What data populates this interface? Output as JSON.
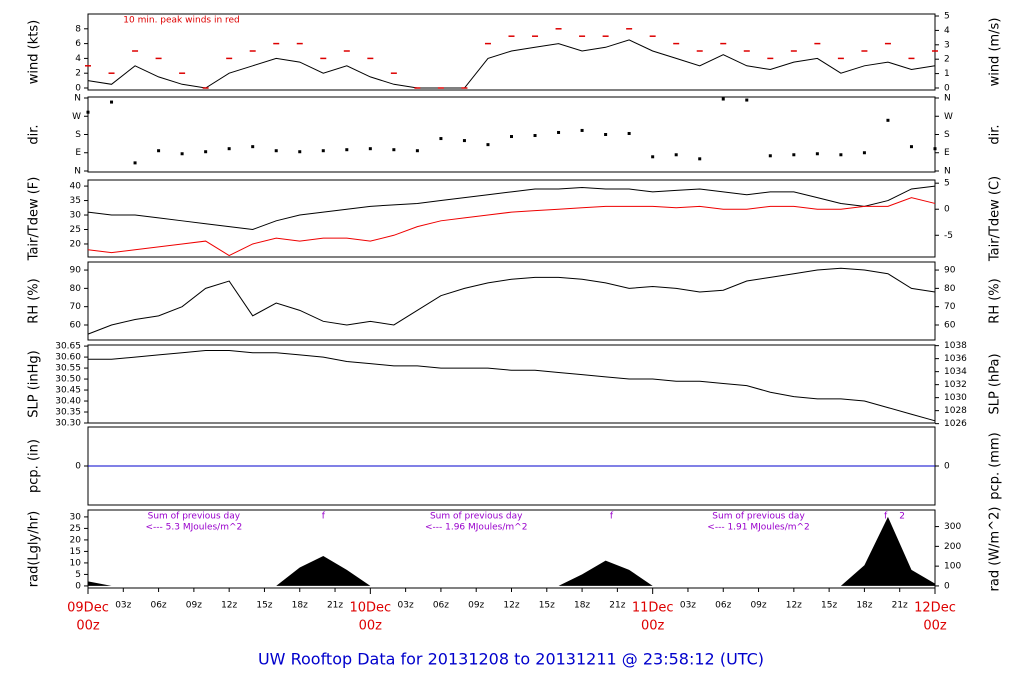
{
  "title": "UW Rooftop Data for 20131208  to  20131211 @ 23:58:12  (UTC)",
  "chart_data": [
    {
      "type": "line",
      "ylabel": "wind (kts)",
      "y2label": "wind (m/s)",
      "annotations": [
        {
          "x": 3,
          "text": "10 min. peak winds in red",
          "color": "#dd0000"
        }
      ],
      "x": [
        0,
        2,
        4,
        6,
        8,
        10,
        12,
        14,
        16,
        18,
        20,
        22,
        24,
        26,
        28,
        30,
        32,
        34,
        36,
        38,
        40,
        42,
        44,
        46,
        48,
        50,
        52,
        54,
        56,
        58,
        60,
        62,
        64,
        66,
        68,
        70,
        72
      ],
      "series": [
        {
          "color": "#000000",
          "style": "line",
          "values": [
            1,
            0.5,
            3,
            1.5,
            0.5,
            0,
            2,
            3,
            4,
            3.5,
            2,
            3,
            1.5,
            0.5,
            0,
            0,
            0,
            4,
            5,
            5.5,
            6,
            5,
            5.5,
            6.5,
            5,
            4,
            3,
            4.5,
            3,
            2.5,
            3.5,
            4,
            2,
            3,
            3.5,
            2.5,
            3
          ]
        },
        {
          "color": "#dd0000",
          "style": "dash",
          "values": [
            3,
            2,
            5,
            4,
            2,
            0,
            4,
            5,
            6,
            6,
            4,
            5,
            4,
            2,
            0,
            0,
            0,
            6,
            7,
            7,
            8,
            7,
            7,
            8,
            7,
            6,
            5,
            6,
            5,
            4,
            5,
            6,
            4,
            5,
            6,
            4,
            5
          ]
        }
      ],
      "xlim": [
        0,
        72
      ],
      "ylim": [
        -0.27,
        10
      ],
      "yticks": [
        0,
        2,
        4,
        6,
        8
      ],
      "y2lim": [
        -0.14,
        5.14
      ],
      "y2ticks": [
        0,
        1,
        2,
        3,
        4,
        5
      ]
    },
    {
      "type": "scatter",
      "ylabel": "dir.",
      "y2label": "dir.",
      "x": [
        0,
        2,
        4,
        6,
        8,
        10,
        12,
        14,
        16,
        18,
        20,
        22,
        24,
        26,
        28,
        30,
        32,
        34,
        36,
        38,
        40,
        42,
        44,
        46,
        48,
        50,
        52,
        54,
        56,
        58,
        60,
        62,
        64,
        66,
        68,
        70,
        72
      ],
      "series": [
        {
          "color": "#000000",
          "values": [
            290,
            340,
            40,
            100,
            85,
            95,
            110,
            120,
            100,
            95,
            100,
            105,
            110,
            105,
            100,
            160,
            150,
            130,
            170,
            175,
            190,
            200,
            180,
            185,
            70,
            80,
            60,
            355,
            350,
            75,
            80,
            85,
            80,
            90,
            250,
            120,
            110
          ]
        }
      ],
      "xlim": [
        0,
        72
      ],
      "ylim": [
        -5,
        365
      ],
      "yticks": [
        {
          "value": 0,
          "label": "N"
        },
        {
          "value": 90,
          "label": "E"
        },
        {
          "value": 180,
          "label": "S"
        },
        {
          "value": 270,
          "label": "W"
        },
        {
          "value": 360,
          "label": "N"
        }
      ],
      "y2lim": [
        -5,
        365
      ],
      "y2ticks": [
        {
          "value": 0,
          "label": "N"
        },
        {
          "value": 90,
          "label": "E"
        },
        {
          "value": 180,
          "label": "S"
        },
        {
          "value": 270,
          "label": "W"
        },
        {
          "value": 360,
          "label": "N"
        }
      ]
    },
    {
      "type": "line",
      "ylabel": "Tair/Tdew (F)",
      "y2label": "Tair/Tdew (C)",
      "x": [
        0,
        2,
        4,
        6,
        8,
        10,
        12,
        14,
        16,
        18,
        20,
        22,
        24,
        26,
        28,
        30,
        32,
        34,
        36,
        38,
        40,
        42,
        44,
        46,
        48,
        50,
        52,
        54,
        56,
        58,
        60,
        62,
        64,
        66,
        68,
        70,
        72
      ],
      "series": [
        {
          "color": "#000000",
          "style": "line",
          "values": [
            31,
            30,
            30,
            29,
            28,
            27,
            26,
            25,
            28,
            30,
            31,
            32,
            33,
            33.5,
            34,
            35,
            36,
            37,
            38,
            39,
            39,
            39.5,
            39,
            39,
            38,
            38.5,
            39,
            38,
            37,
            38,
            38,
            36,
            34,
            33,
            35,
            39,
            40
          ]
        },
        {
          "color": "#ee0000",
          "style": "line",
          "values": [
            18,
            17,
            18,
            19,
            20,
            21,
            16,
            20,
            22,
            21,
            22,
            22,
            21,
            23,
            26,
            28,
            29,
            30,
            31,
            31.5,
            32,
            32.5,
            33,
            33,
            33,
            32.5,
            33,
            32,
            32,
            33,
            33,
            32,
            32,
            33,
            33,
            36,
            34
          ]
        }
      ],
      "xlim": [
        0,
        72
      ],
      "ylim": [
        15.5,
        42.1
      ],
      "yticks": [
        20,
        25,
        30,
        35,
        40
      ],
      "y2lim": [
        -9.17,
        5.61
      ],
      "y2ticks": [
        -5,
        0,
        5
      ]
    },
    {
      "type": "line",
      "ylabel": "RH (%)",
      "y2label": "RH (%)",
      "x": [
        0,
        2,
        4,
        6,
        8,
        10,
        12,
        14,
        16,
        18,
        20,
        22,
        24,
        26,
        28,
        30,
        32,
        34,
        36,
        38,
        40,
        42,
        44,
        46,
        48,
        50,
        52,
        54,
        56,
        58,
        60,
        62,
        64,
        66,
        68,
        70,
        72
      ],
      "series": [
        {
          "color": "#000000",
          "style": "line",
          "values": [
            55,
            60,
            63,
            65,
            70,
            80,
            84,
            65,
            72,
            68,
            62,
            60,
            62,
            60,
            68,
            76,
            80,
            83,
            85,
            86,
            86,
            85,
            83,
            80,
            81,
            80,
            78,
            79,
            84,
            86,
            88,
            90,
            91,
            90,
            88,
            80,
            78
          ]
        }
      ],
      "xlim": [
        0,
        72
      ],
      "ylim": [
        51.8,
        94.4
      ],
      "yticks": [
        60,
        70,
        80,
        90
      ],
      "y2lim": [
        51.8,
        94.4
      ],
      "y2ticks": [
        60,
        70,
        80,
        90
      ]
    },
    {
      "type": "line",
      "ylabel": "SLP (inHg)",
      "y2label": "SLP (hPa)",
      "x": [
        0,
        2,
        4,
        6,
        8,
        10,
        12,
        14,
        16,
        18,
        20,
        22,
        24,
        26,
        28,
        30,
        32,
        34,
        36,
        38,
        40,
        42,
        44,
        46,
        48,
        50,
        52,
        54,
        56,
        58,
        60,
        62,
        64,
        66,
        68,
        70,
        72
      ],
      "series": [
        {
          "color": "#000000",
          "style": "line",
          "values": [
            30.59,
            30.59,
            30.6,
            30.61,
            30.62,
            30.63,
            30.63,
            30.62,
            30.62,
            30.61,
            30.6,
            30.58,
            30.57,
            30.56,
            30.56,
            30.55,
            30.55,
            30.55,
            30.54,
            30.54,
            30.53,
            30.52,
            30.51,
            30.5,
            30.5,
            30.49,
            30.49,
            30.48,
            30.47,
            30.44,
            30.42,
            30.41,
            30.41,
            30.4,
            30.37,
            30.34,
            30.31
          ]
        }
      ],
      "xlim": [
        0,
        72
      ],
      "ylim": [
        30.3,
        30.655
      ],
      "yticks": [
        {
          "value": 30.3,
          "label": "30.30"
        },
        30.35,
        {
          "value": 30.4,
          "label": "30.40"
        },
        30.45,
        {
          "value": 30.5,
          "label": "30.50"
        },
        30.55,
        {
          "value": 30.6,
          "label": "30.60"
        },
        30.65
      ],
      "y2lim": [
        1026.1,
        1038.1
      ],
      "y2ticks": [
        1026,
        1028,
        1030,
        1032,
        1034,
        1036,
        1038
      ]
    },
    {
      "type": "line",
      "ylabel": "pcp. (in)",
      "y2label": "pcp. (mm)",
      "x": [
        0,
        72
      ],
      "series": [
        {
          "color": "#0000cc",
          "style": "line",
          "values": [
            0,
            0
          ]
        }
      ],
      "xlim": [
        0,
        72
      ],
      "ylim": [
        -1,
        1
      ],
      "yticks": [
        0
      ],
      "y2lim": [
        -1,
        1
      ],
      "y2ticks": [
        0
      ]
    },
    {
      "type": "area",
      "ylabel": "rad(Lgly/hr)",
      "y2label": "rad (W/m^2)",
      "annotations": [
        {
          "x": 9,
          "row": 0,
          "text": "Sum of previous day",
          "color": "#9900cc"
        },
        {
          "x": 9,
          "row": 1,
          "text": "<--- 5.3 MJoules/m^2",
          "color": "#9900cc"
        },
        {
          "x": 20,
          "row": 0,
          "text": "f",
          "color": "#9900cc"
        },
        {
          "x": 33,
          "row": 0,
          "text": "Sum of previous day",
          "color": "#9900cc"
        },
        {
          "x": 33,
          "row": 1,
          "text": "<--- 1.96 MJoules/m^2",
          "color": "#9900cc"
        },
        {
          "x": 44.5,
          "row": 0,
          "text": "f",
          "color": "#9900cc"
        },
        {
          "x": 57,
          "row": 0,
          "text": "Sum of previous day",
          "color": "#9900cc"
        },
        {
          "x": 57,
          "row": 1,
          "text": "<--- 1.91 MJoules/m^2",
          "color": "#9900cc"
        },
        {
          "x": 67.8,
          "row": 0,
          "text": "f",
          "color": "#9900cc"
        },
        {
          "x": 69.2,
          "row": 0,
          "text": "2",
          "color": "#9900cc"
        }
      ],
      "x": [
        0,
        2,
        4,
        6,
        8,
        10,
        12,
        14,
        16,
        18,
        20,
        22,
        24,
        26,
        28,
        30,
        32,
        34,
        36,
        38,
        40,
        42,
        44,
        46,
        48,
        50,
        52,
        54,
        56,
        58,
        60,
        62,
        64,
        66,
        68,
        70,
        72
      ],
      "series": [
        {
          "color": "#000000",
          "values": [
            2,
            0,
            0,
            0,
            0,
            0,
            0,
            0,
            0,
            8,
            13,
            7,
            0,
            0,
            0,
            0,
            0,
            0,
            0,
            0,
            0,
            5,
            11,
            7,
            0,
            0,
            0,
            0,
            0,
            0,
            0,
            0,
            0,
            9,
            30,
            7,
            1
          ]
        }
      ],
      "xlim": [
        0,
        72
      ],
      "ylim": [
        -0.9,
        33
      ],
      "yticks": [
        0,
        5,
        10,
        15,
        20,
        25,
        30
      ],
      "y2lim": [
        -10.5,
        383.8
      ],
      "y2ticks": [
        0,
        100,
        200,
        300
      ],
      "xticks": [
        {
          "value": 3,
          "label": "03z"
        },
        {
          "value": 6,
          "label": "06z"
        },
        {
          "value": 9,
          "label": "09z"
        },
        {
          "value": 12,
          "label": "12z"
        },
        {
          "value": 15,
          "label": "15z"
        },
        {
          "value": 18,
          "label": "18z"
        },
        {
          "value": 21,
          "label": "21z"
        },
        {
          "value": 27,
          "label": "03z"
        },
        {
          "value": 30,
          "label": "06z"
        },
        {
          "value": 33,
          "label": "09z"
        },
        {
          "value": 36,
          "label": "12z"
        },
        {
          "value": 39,
          "label": "15z"
        },
        {
          "value": 42,
          "label": "18z"
        },
        {
          "value": 45,
          "label": "21z"
        },
        {
          "value": 51,
          "label": "03z"
        },
        {
          "value": 54,
          "label": "06z"
        },
        {
          "value": 57,
          "label": "09z"
        },
        {
          "value": 60,
          "label": "12z"
        },
        {
          "value": 63,
          "label": "15z"
        },
        {
          "value": 66,
          "label": "18z"
        },
        {
          "value": 69,
          "label": "21z"
        }
      ],
      "date_ticks": [
        {
          "value": 0,
          "label": "09Dec",
          "sublabel": "00z"
        },
        {
          "value": 24,
          "label": "10Dec",
          "sublabel": "00z"
        },
        {
          "value": 48,
          "label": "11Dec",
          "sublabel": "00z"
        },
        {
          "value": 72,
          "label": "12Dec",
          "sublabel": "00z"
        }
      ]
    }
  ]
}
